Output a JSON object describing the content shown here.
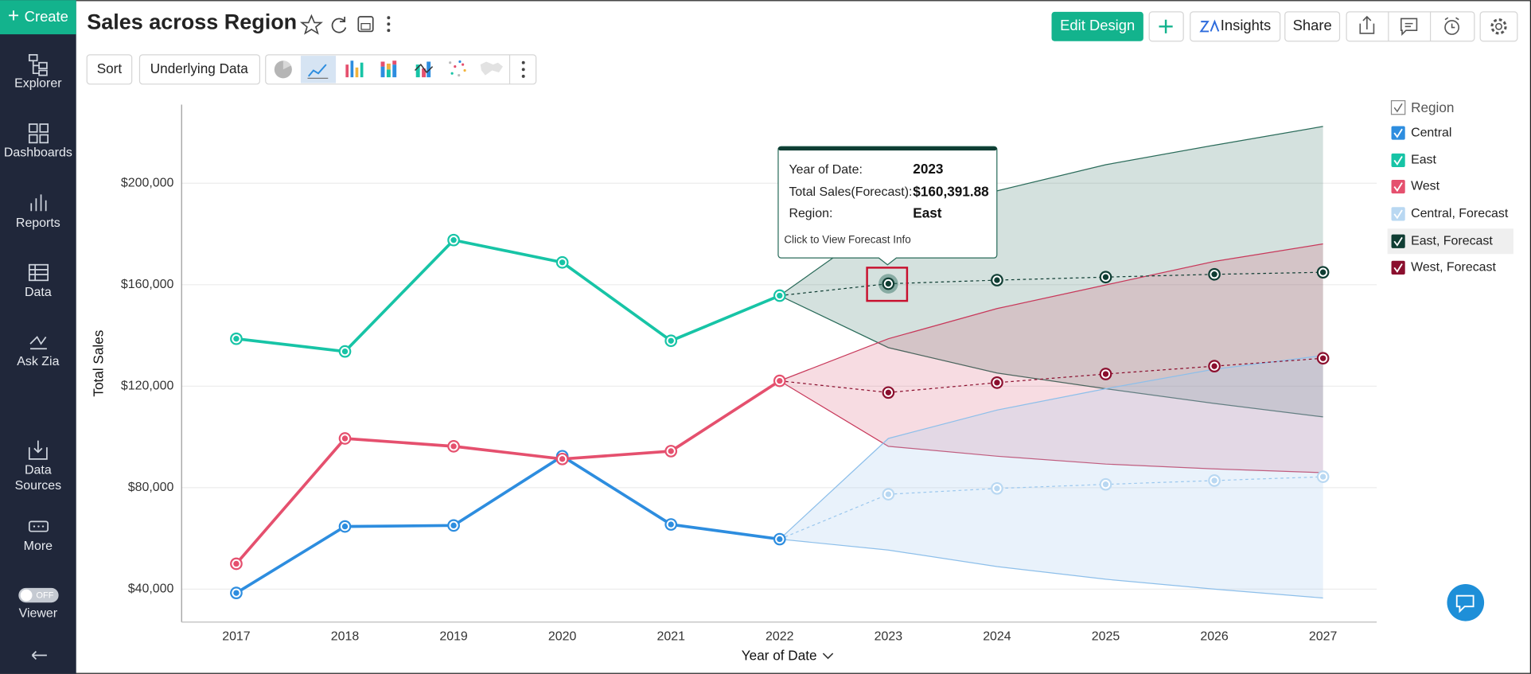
{
  "sidebar": {
    "create": "Create",
    "items": [
      "Explorer",
      "Dashboards",
      "Reports",
      "Data",
      "Ask Zia",
      "Data Sources",
      "More",
      "Viewer"
    ],
    "toggle": "OFF"
  },
  "header": {
    "title": "Sales across Region",
    "buttons": [
      "Edit Design",
      "Insights",
      "Share"
    ]
  },
  "toolbar": {
    "buttons": [
      "Sort",
      "Underlying Data"
    ]
  },
  "tooltip": {
    "rows": [
      {
        "label": "Year of Date:",
        "value": "2023"
      },
      {
        "label": "Total Sales(Forecast):",
        "value": "$160,391.88"
      },
      {
        "label": "Region:",
        "value": "East"
      }
    ],
    "footer": "Click to View Forecast Info"
  },
  "chart_data": {
    "type": "line",
    "x_label": "Year of Date",
    "y_label": "Total Sales",
    "legend_title": "Region",
    "legend_position": "right",
    "grid": true,
    "categories": [
      "2017",
      "2018",
      "2019",
      "2020",
      "2021",
      "2022",
      "2023",
      "2024",
      "2025",
      "2026",
      "2027"
    ],
    "ylim": [
      27000,
      231000
    ],
    "yticks": [
      {
        "value": 40000,
        "label": "$40,000"
      },
      {
        "value": 80000,
        "label": "$80,000"
      },
      {
        "value": 120000,
        "label": "$120,000"
      },
      {
        "value": 160000,
        "label": "$160,000"
      },
      {
        "value": 200000,
        "label": "$200,000"
      }
    ],
    "series": [
      {
        "name": "Central",
        "color": "#2d8ddf",
        "values": [
          38500,
          64700,
          65100,
          92400,
          65500,
          59700,
          null,
          null,
          null,
          null,
          null
        ]
      },
      {
        "name": "East",
        "color": "#17c4a6",
        "values": [
          138700,
          133700,
          177600,
          168800,
          137900,
          155700,
          null,
          null,
          null,
          null,
          null
        ]
      },
      {
        "name": "West",
        "color": "#e5506e",
        "values": [
          50000,
          99400,
          96300,
          91300,
          94400,
          122100,
          null,
          null,
          null,
          null,
          null
        ]
      },
      {
        "name": "Central, Forecast",
        "color": "#b9d8f2",
        "dashed": true,
        "values": [
          null,
          null,
          null,
          null,
          null,
          null,
          77400,
          79700,
          81300,
          82800,
          84300
        ],
        "upper": [
          null,
          null,
          null,
          null,
          null,
          null,
          99400,
          110600,
          119000,
          126700,
          132100
        ],
        "lower": [
          null,
          null,
          null,
          null,
          null,
          null,
          55400,
          48900,
          43900,
          40000,
          36500
        ]
      },
      {
        "name": "East, Forecast",
        "color": "#0f3d33",
        "dashed": true,
        "values": [
          null,
          null,
          null,
          null,
          null,
          null,
          160391.88,
          161800,
          163000,
          164100,
          164900
        ],
        "upper": [
          null,
          null,
          null,
          null,
          null,
          null,
          186000,
          197000,
          207300,
          215000,
          222400
        ],
        "lower": [
          null,
          null,
          null,
          null,
          null,
          null,
          135200,
          125200,
          119000,
          113200,
          107900
        ]
      },
      {
        "name": "West, Forecast",
        "color": "#8b0f2e",
        "dashed": true,
        "values": [
          null,
          null,
          null,
          null,
          null,
          null,
          117500,
          121400,
          124800,
          127900,
          131000
        ],
        "upper": [
          null,
          null,
          null,
          null,
          null,
          null,
          138700,
          150600,
          159900,
          169200,
          176100
        ],
        "lower": [
          null,
          null,
          null,
          null,
          null,
          null,
          96300,
          92400,
          89300,
          87400,
          85900
        ]
      }
    ]
  }
}
